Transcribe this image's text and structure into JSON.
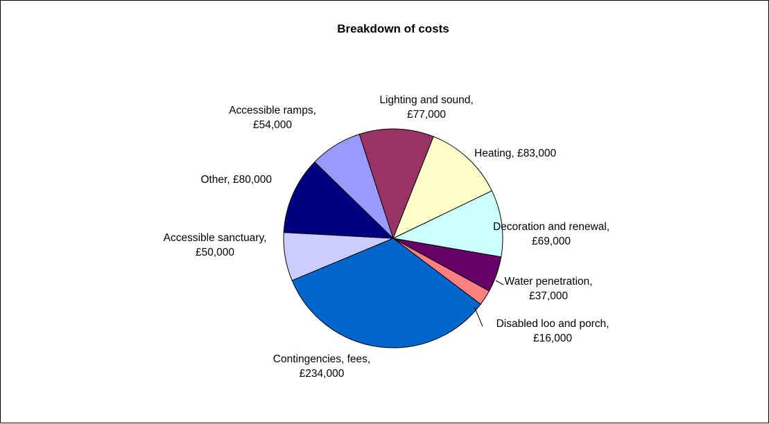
{
  "chart_data": {
    "type": "pie",
    "title": "Breakdown of costs",
    "slices": [
      {
        "category": "Lighting and sound",
        "value_label": "£77,000",
        "value": 77000,
        "color": "#993366"
      },
      {
        "category": "Heating",
        "value_label": "£83,000",
        "value": 83000,
        "color": "#FFFFCC"
      },
      {
        "category": "Decoration and renewal",
        "value_label": "£69,000",
        "value": 69000,
        "color": "#CCFFFF"
      },
      {
        "category": "Water penetration",
        "value_label": "£37,000",
        "value": 37000,
        "color": "#660066"
      },
      {
        "category": "Disabled loo and porch",
        "value_label": "£16,000",
        "value": 16000,
        "color": "#FF8080"
      },
      {
        "category": "Contingencies, fees",
        "value_label": "£234,000",
        "value": 234000,
        "color": "#0066CC"
      },
      {
        "category": "Accessible sanctuary",
        "value_label": "£50,000",
        "value": 50000,
        "color": "#CCCCFF"
      },
      {
        "category": "Other",
        "value_label": "£80,000",
        "value": 80000,
        "color": "#000080"
      },
      {
        "category": "Accessible ramps",
        "value_label": "£54,000",
        "value": 54000,
        "color": "#9999FF"
      }
    ],
    "legend": "none",
    "data_labels": "category and value"
  }
}
